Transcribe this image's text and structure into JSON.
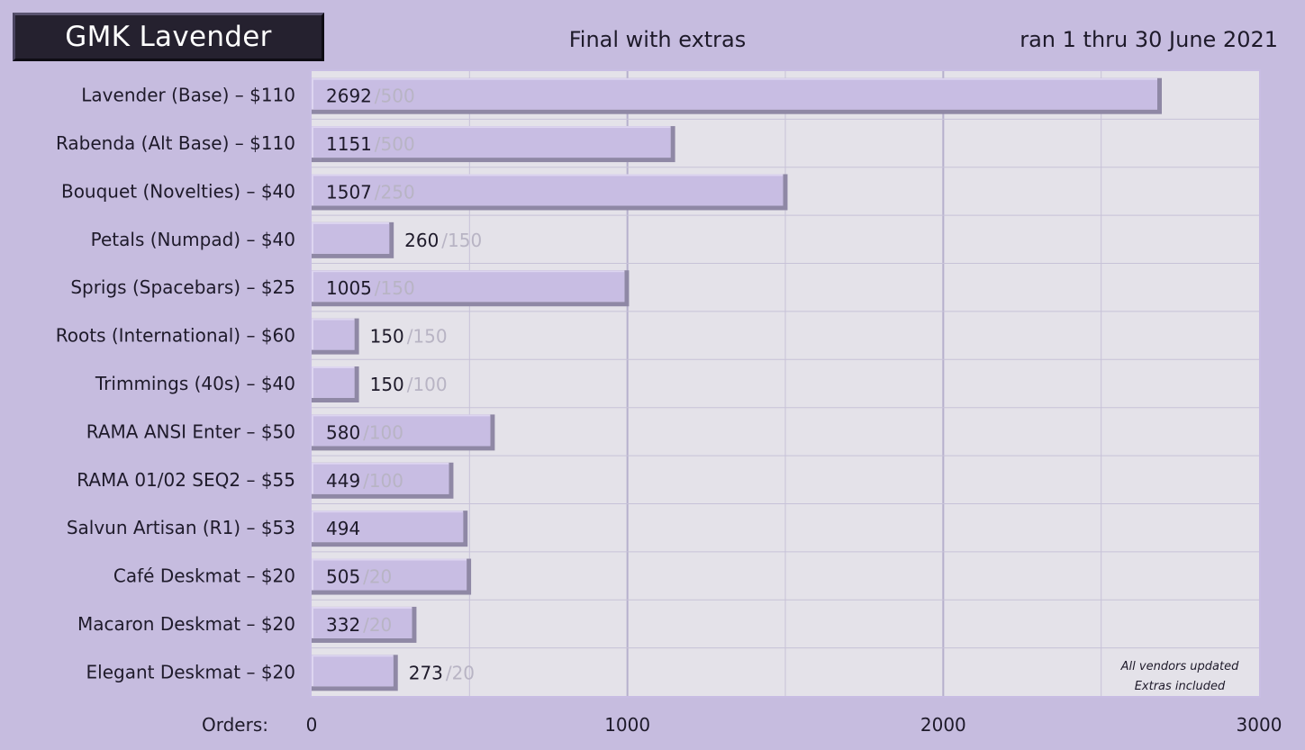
{
  "header": {
    "title": "GMK Lavender",
    "subtitle": "Final with extras",
    "date_range": "ran 1 thru 30 June 2021"
  },
  "colors": {
    "background": "#c6bcdf",
    "plot_background": "#e4e2e9",
    "bar_fill": "#c8bde3",
    "bar_shadow": "#8f88a5",
    "grid": "#c7c2d8",
    "target_text": "#b8b4c4"
  },
  "chart_data": {
    "type": "bar",
    "orientation": "horizontal",
    "xlabel": "Orders:",
    "xlim": [
      0,
      3000
    ],
    "xticks": [
      0,
      1000,
      2000,
      3000
    ],
    "grid": true,
    "categories": [
      "Lavender (Base) – $110",
      "Rabenda (Alt Base) – $110",
      "Bouquet (Novelties) – $40",
      "Petals (Numpad) – $40",
      "Sprigs (Spacebars) – $25",
      "Roots (International) – $60",
      "Trimmings (40s) – $40",
      "RAMA ANSI Enter – $50",
      "RAMA 01/02 SEQ2 – $55",
      "Salvun Artisan (R1) – $53",
      "Café Deskmat – $20",
      "Macaron Deskmat – $20",
      "Elegant Deskmat – $20"
    ],
    "values": [
      2692,
      1151,
      1507,
      260,
      1005,
      150,
      150,
      580,
      449,
      494,
      505,
      332,
      273
    ],
    "targets": [
      "/500",
      "/500",
      "/250",
      "/150",
      "/150",
      "/150",
      "/100",
      "/100",
      "/100",
      "",
      "/20",
      "/20",
      "/20"
    ],
    "annotations": [
      "All vendors updated",
      "Extras included"
    ]
  }
}
